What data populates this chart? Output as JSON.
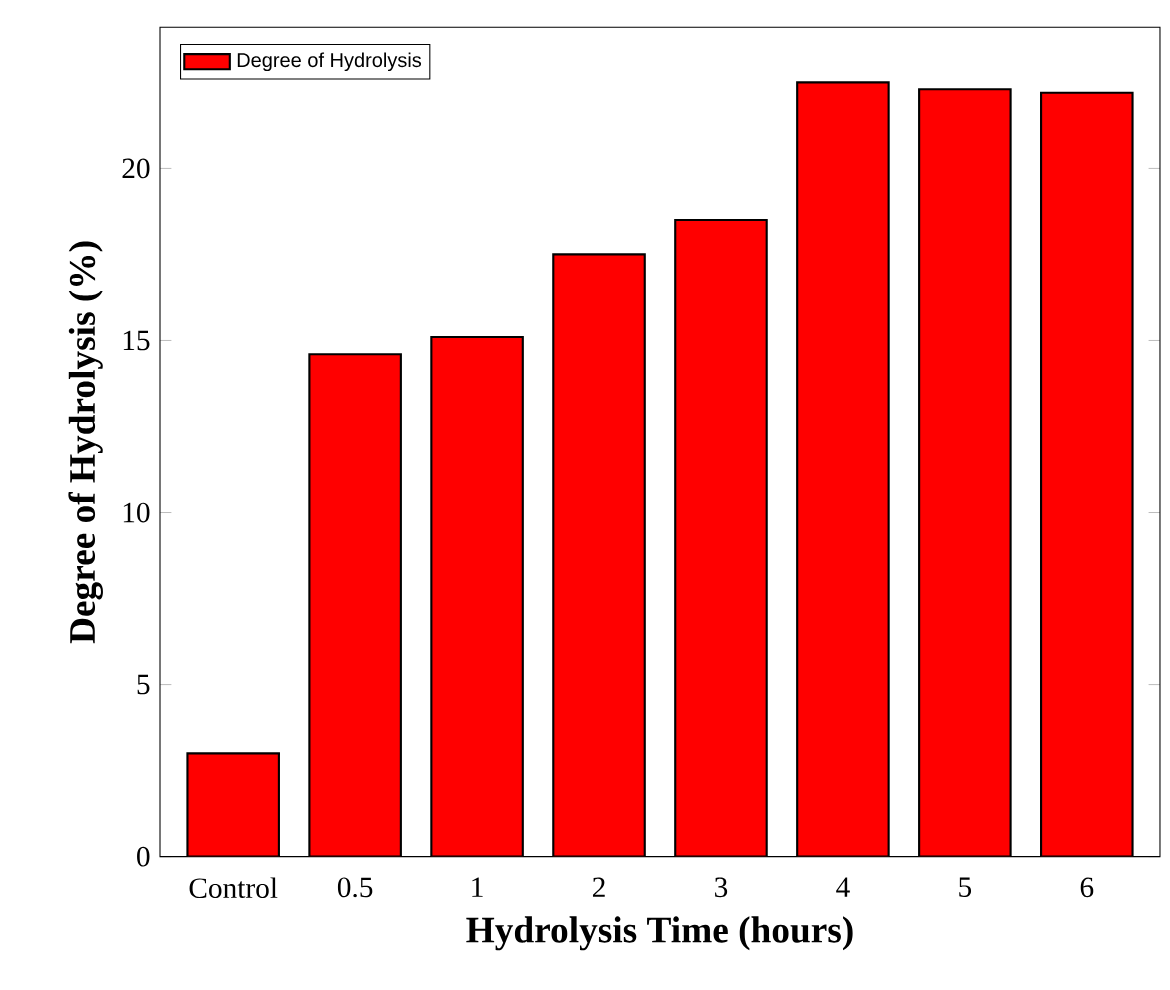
{
  "chart_data": {
    "type": "bar",
    "xlabel": "Hydrolysis Time (hours)",
    "ylabel": "Degree of Hydrolysis (%)",
    "categories": [
      "Control",
      "0.5",
      "1",
      "2",
      "3",
      "4",
      "5",
      "6"
    ],
    "series": [
      {
        "name": "Degree of Hydrolysis",
        "color": "#ff0000",
        "values": [
          3.0,
          14.6,
          15.1,
          17.5,
          18.5,
          22.5,
          22.3,
          22.2
        ]
      }
    ],
    "ylim": [
      0,
      24.1
    ],
    "yticks": [
      0,
      5,
      10,
      15,
      20
    ],
    "legend": "top left"
  }
}
